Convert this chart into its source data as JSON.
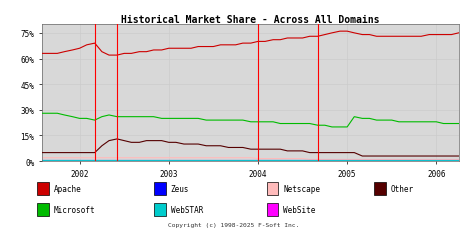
{
  "title": "Historical Market Share - Across All Domains",
  "copyright": "Copyright (c) 1998-2025 F-Soft Inc.",
  "ylabel_ticks": [
    "0%",
    "15%",
    "30%",
    "45%",
    "60%",
    "75%"
  ],
  "ytick_vals": [
    0,
    15,
    30,
    45,
    60,
    75
  ],
  "ylim": [
    0,
    80
  ],
  "xlim_start": 2001.58,
  "xlim_end": 2006.25,
  "xtick_years": [
    2002,
    2003,
    2004,
    2005,
    2006
  ],
  "red_vlines": [
    2002.17,
    2002.42,
    2004.0,
    2004.67
  ],
  "background_color": "#ffffff",
  "grid_color": "#cccccc",
  "plot_bg": "#d8d8d8",
  "apache_color": "#cc0000",
  "microsoft_color": "#00bb00",
  "other_color": "#550000",
  "zeus_color": "#0000ff",
  "webstar_color": "#00cccc",
  "netscape_color": "#ffbbbb",
  "website_color": "#ff00ff",
  "vline_color": "#ff0000",
  "apache": {
    "x": [
      2001.58,
      2001.67,
      2001.75,
      2001.83,
      2001.92,
      2002.0,
      2002.08,
      2002.17,
      2002.25,
      2002.33,
      2002.42,
      2002.5,
      2002.58,
      2002.67,
      2002.75,
      2002.83,
      2002.92,
      2003.0,
      2003.08,
      2003.17,
      2003.25,
      2003.33,
      2003.42,
      2003.5,
      2003.58,
      2003.67,
      2003.75,
      2003.83,
      2003.92,
      2004.0,
      2004.08,
      2004.17,
      2004.25,
      2004.33,
      2004.42,
      2004.5,
      2004.58,
      2004.67,
      2004.75,
      2004.83,
      2004.92,
      2005.0,
      2005.08,
      2005.17,
      2005.25,
      2005.33,
      2005.42,
      2005.5,
      2005.58,
      2005.67,
      2005.75,
      2005.83,
      2005.92,
      2006.0,
      2006.08,
      2006.17,
      2006.25
    ],
    "y": [
      63,
      63,
      63,
      64,
      65,
      66,
      68,
      69,
      64,
      62,
      62,
      63,
      63,
      64,
      64,
      65,
      65,
      66,
      66,
      66,
      66,
      67,
      67,
      67,
      68,
      68,
      68,
      69,
      69,
      70,
      70,
      71,
      71,
      72,
      72,
      72,
      73,
      73,
      74,
      75,
      76,
      76,
      75,
      74,
      74,
      73,
      73,
      73,
      73,
      73,
      73,
      73,
      74,
      74,
      74,
      74,
      75
    ]
  },
  "microsoft": {
    "x": [
      2001.58,
      2001.67,
      2001.75,
      2001.83,
      2001.92,
      2002.0,
      2002.08,
      2002.17,
      2002.25,
      2002.33,
      2002.42,
      2002.5,
      2002.58,
      2002.67,
      2002.75,
      2002.83,
      2002.92,
      2003.0,
      2003.08,
      2003.17,
      2003.25,
      2003.33,
      2003.42,
      2003.5,
      2003.58,
      2003.67,
      2003.75,
      2003.83,
      2003.92,
      2004.0,
      2004.08,
      2004.17,
      2004.25,
      2004.33,
      2004.42,
      2004.5,
      2004.58,
      2004.67,
      2004.75,
      2004.83,
      2004.92,
      2005.0,
      2005.08,
      2005.17,
      2005.25,
      2005.33,
      2005.42,
      2005.5,
      2005.58,
      2005.67,
      2005.75,
      2005.83,
      2005.92,
      2006.0,
      2006.08,
      2006.17,
      2006.25
    ],
    "y": [
      28,
      28,
      28,
      27,
      26,
      25,
      25,
      24,
      26,
      27,
      26,
      26,
      26,
      26,
      26,
      26,
      25,
      25,
      25,
      25,
      25,
      25,
      24,
      24,
      24,
      24,
      24,
      24,
      23,
      23,
      23,
      23,
      22,
      22,
      22,
      22,
      22,
      21,
      21,
      20,
      20,
      20,
      26,
      25,
      25,
      24,
      24,
      24,
      23,
      23,
      23,
      23,
      23,
      23,
      22,
      22,
      22
    ]
  },
  "other": {
    "x": [
      2001.58,
      2001.67,
      2001.75,
      2001.83,
      2001.92,
      2002.0,
      2002.08,
      2002.17,
      2002.25,
      2002.33,
      2002.42,
      2002.5,
      2002.58,
      2002.67,
      2002.75,
      2002.83,
      2002.92,
      2003.0,
      2003.08,
      2003.17,
      2003.25,
      2003.33,
      2003.42,
      2003.5,
      2003.58,
      2003.67,
      2003.75,
      2003.83,
      2003.92,
      2004.0,
      2004.08,
      2004.17,
      2004.25,
      2004.33,
      2004.42,
      2004.5,
      2004.58,
      2004.67,
      2004.75,
      2004.83,
      2004.92,
      2005.0,
      2005.08,
      2005.17,
      2005.25,
      2005.33,
      2005.42,
      2005.5,
      2005.58,
      2005.67,
      2005.75,
      2005.83,
      2005.92,
      2006.0,
      2006.08,
      2006.17,
      2006.25
    ],
    "y": [
      5,
      5,
      5,
      5,
      5,
      5,
      5,
      5,
      9,
      12,
      13,
      12,
      11,
      11,
      12,
      12,
      12,
      11,
      11,
      10,
      10,
      10,
      9,
      9,
      9,
      8,
      8,
      8,
      7,
      7,
      7,
      7,
      7,
      6,
      6,
      6,
      5,
      5,
      5,
      5,
      5,
      5,
      5,
      3,
      3,
      3,
      3,
      3,
      3,
      3,
      3,
      3,
      3,
      3,
      3,
      3,
      3
    ]
  },
  "netscape": {
    "x": [
      2001.58,
      2001.67,
      2001.75,
      2001.83,
      2001.92,
      2002.0,
      2002.08,
      2002.17,
      2002.25,
      2002.33,
      2002.42,
      2002.5,
      2002.58,
      2002.67,
      2002.75,
      2002.83,
      2002.92,
      2003.0,
      2003.08,
      2003.17,
      2003.25,
      2003.33,
      2003.42,
      2003.5,
      2003.58,
      2003.67,
      2003.75,
      2003.83,
      2003.92,
      2004.0,
      2004.08,
      2004.17,
      2004.25,
      2004.33,
      2004.42,
      2004.5,
      2004.58,
      2004.67,
      2004.75,
      2004.83,
      2004.92,
      2005.0,
      2005.08,
      2005.17,
      2005.25,
      2005.33,
      2005.42,
      2005.5,
      2005.58,
      2005.67,
      2005.75,
      2005.83,
      2005.92,
      2006.0,
      2006.08,
      2006.17,
      2006.25
    ],
    "y": [
      2,
      2,
      2,
      2,
      2,
      2,
      2,
      2,
      2,
      2,
      2,
      2,
      2,
      2,
      2,
      2,
      2,
      2,
      2,
      2,
      2,
      2,
      2,
      2,
      2,
      2,
      2,
      2,
      2,
      1.5,
      1.5,
      1.5,
      1.5,
      1.5,
      1.5,
      1.5,
      1,
      1,
      1,
      1,
      1,
      1,
      1,
      1,
      1,
      1,
      1,
      1,
      1,
      1,
      1,
      1,
      1,
      1,
      1,
      1,
      1
    ]
  },
  "zeus": {
    "x": [
      2001.58,
      2006.25
    ],
    "y": [
      0.8,
      0.8
    ]
  },
  "webstar": {
    "x": [
      2001.58,
      2006.25
    ],
    "y": [
      0.5,
      0.5
    ]
  },
  "website": {
    "x": [
      2001.58,
      2006.25
    ],
    "y": [
      0.3,
      0.3
    ]
  },
  "row1": [
    {
      "label": "Apache",
      "color": "#cc0000"
    },
    {
      "label": "Zeus",
      "color": "#0000ff"
    },
    {
      "label": "Netscape",
      "color": "#ffbbbb"
    },
    {
      "label": "Other",
      "color": "#550000"
    }
  ],
  "row2": [
    {
      "label": "Microsoft",
      "color": "#00bb00"
    },
    {
      "label": "WebSTAR",
      "color": "#00cccc"
    },
    {
      "label": "WebSite",
      "color": "#ff00ff"
    }
  ]
}
